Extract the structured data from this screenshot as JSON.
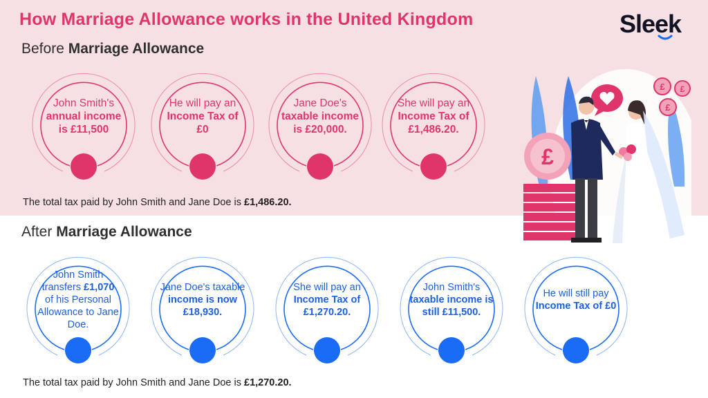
{
  "title": "How Marriage Allowance works in the United Kingdom",
  "logo": {
    "text": "Sleek"
  },
  "before": {
    "heading_plain": "Before",
    "heading_bold": "Marriage Allowance",
    "circles": [
      {
        "plain1": "John Smith's",
        "bold": "annual income is £11,500",
        "plain2": ""
      },
      {
        "plain1": "He will pay an",
        "bold": "Income Tax of £0",
        "plain2": ""
      },
      {
        "plain1": "Jane Doe's",
        "bold": "taxable income is £20,000.",
        "plain2": ""
      },
      {
        "plain1": "She will pay an",
        "bold": "Income Tax of £1,486.20.",
        "plain2": ""
      }
    ],
    "total_text": "The total tax paid by John Smith and Jane Doe is",
    "total_value": "£1,486.20."
  },
  "after": {
    "heading_plain": "After",
    "heading_bold": "Marriage Allowance",
    "circles": [
      {
        "plain1": "John Smith transfers",
        "bold": "£1,070",
        "plain2": "of his Personal Allowance to Jane Doe."
      },
      {
        "plain1": "Jane Doe's taxable",
        "bold": "income is now £18,930.",
        "plain2": ""
      },
      {
        "plain1": "She will pay an",
        "bold": "Income Tax of £1,270.20.",
        "plain2": ""
      },
      {
        "plain1": "John Smith's",
        "bold": "taxable income is still £11,500.",
        "plain2": ""
      },
      {
        "plain1": "He will still pay",
        "bold": "Income Tax of £0",
        "plain2": ""
      }
    ],
    "total_text": "The total tax paid by John Smith and Jane Doe is",
    "total_value": "£1,270.20."
  },
  "illustration": {
    "coin_symbol": "£",
    "icons": [
      "heart-speech-bubble-icon",
      "pound-coin-icon",
      "couple-illustration"
    ]
  },
  "colors": {
    "accent_pink": "#e0356a",
    "accent_blue": "#1a6cf5",
    "band_pink": "#f7e0e4"
  }
}
